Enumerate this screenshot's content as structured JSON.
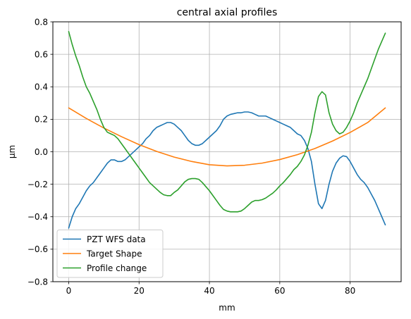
{
  "chart_data": {
    "type": "line",
    "title": "central axial profiles",
    "xlabel": "mm",
    "ylabel": "μm",
    "xlim": [
      -4.5,
      94.5
    ],
    "ylim": [
      -0.8,
      0.8
    ],
    "xticks": [
      0,
      20,
      40,
      60,
      80
    ],
    "yticks": [
      -0.8,
      -0.6,
      -0.4,
      -0.2,
      0.0,
      0.2,
      0.4,
      0.6,
      0.8
    ],
    "xtick_labels": [
      "0",
      "20",
      "40",
      "60",
      "80"
    ],
    "ytick_labels": [
      "−0.8",
      "−0.6",
      "−0.4",
      "−0.2",
      "0.0",
      "0.2",
      "0.4",
      "0.6",
      "0.8"
    ],
    "grid": true,
    "legend_position": "lower left",
    "series": [
      {
        "name": "PZT WFS data",
        "color": "#1f77b4",
        "x": [
          0,
          1,
          2,
          3,
          4,
          5,
          6,
          7,
          8,
          9,
          10,
          11,
          12,
          13,
          14,
          15,
          16,
          17,
          18,
          19,
          20,
          21,
          22,
          23,
          24,
          25,
          26,
          27,
          28,
          29,
          30,
          31,
          32,
          33,
          34,
          35,
          36,
          37,
          38,
          39,
          40,
          41,
          42,
          43,
          44,
          45,
          46,
          47,
          48,
          49,
          50,
          51,
          52,
          53,
          54,
          55,
          56,
          57,
          58,
          59,
          60,
          61,
          62,
          63,
          64,
          65,
          66,
          67,
          68,
          69,
          70,
          71,
          72,
          73,
          74,
          75,
          76,
          77,
          78,
          79,
          80,
          81,
          82,
          83,
          84,
          85,
          86,
          87,
          88,
          89,
          90
        ],
        "y": [
          -0.47,
          -0.4,
          -0.35,
          -0.32,
          -0.28,
          -0.24,
          -0.21,
          -0.19,
          -0.16,
          -0.13,
          -0.1,
          -0.07,
          -0.05,
          -0.05,
          -0.06,
          -0.06,
          -0.05,
          -0.03,
          -0.01,
          0.01,
          0.03,
          0.05,
          0.08,
          0.1,
          0.13,
          0.15,
          0.16,
          0.17,
          0.18,
          0.18,
          0.17,
          0.15,
          0.13,
          0.1,
          0.07,
          0.05,
          0.04,
          0.04,
          0.05,
          0.07,
          0.09,
          0.11,
          0.13,
          0.16,
          0.2,
          0.22,
          0.23,
          0.235,
          0.24,
          0.24,
          0.245,
          0.245,
          0.24,
          0.23,
          0.22,
          0.22,
          0.22,
          0.21,
          0.2,
          0.19,
          0.18,
          0.17,
          0.16,
          0.15,
          0.13,
          0.11,
          0.1,
          0.07,
          0.02,
          -0.06,
          -0.2,
          -0.32,
          -0.35,
          -0.3,
          -0.2,
          -0.12,
          -0.07,
          -0.04,
          -0.025,
          -0.03,
          -0.06,
          -0.1,
          -0.14,
          -0.17,
          -0.19,
          -0.22,
          -0.26,
          -0.3,
          -0.35,
          -0.4,
          -0.45
        ]
      },
      {
        "name": "Target Shape",
        "color": "#ff7f0e",
        "x": [
          0,
          5,
          10,
          15,
          20,
          25,
          30,
          35,
          40,
          45,
          50,
          55,
          60,
          65,
          70,
          75,
          80,
          85,
          90
        ],
        "y": [
          0.27,
          0.205,
          0.146,
          0.093,
          0.044,
          0.002,
          -0.033,
          -0.06,
          -0.08,
          -0.087,
          -0.083,
          -0.07,
          -0.048,
          -0.018,
          0.02,
          0.066,
          0.119,
          0.18,
          0.27
        ]
      },
      {
        "name": "Profile change",
        "color": "#2ca02c",
        "x": [
          0,
          1,
          2,
          3,
          4,
          5,
          6,
          7,
          8,
          9,
          10,
          11,
          12,
          13,
          14,
          15,
          16,
          17,
          18,
          19,
          20,
          21,
          22,
          23,
          24,
          25,
          26,
          27,
          28,
          29,
          30,
          31,
          32,
          33,
          34,
          35,
          36,
          37,
          38,
          39,
          40,
          41,
          42,
          43,
          44,
          45,
          46,
          47,
          48,
          49,
          50,
          51,
          52,
          53,
          54,
          55,
          56,
          57,
          58,
          59,
          60,
          61,
          62,
          63,
          64,
          65,
          66,
          67,
          68,
          69,
          70,
          71,
          72,
          73,
          74,
          75,
          76,
          77,
          78,
          79,
          80,
          81,
          82,
          83,
          84,
          85,
          86,
          87,
          88,
          89,
          90
        ],
        "y": [
          0.74,
          0.66,
          0.59,
          0.53,
          0.46,
          0.4,
          0.36,
          0.31,
          0.26,
          0.2,
          0.15,
          0.12,
          0.11,
          0.1,
          0.08,
          0.05,
          0.02,
          -0.01,
          -0.04,
          -0.07,
          -0.1,
          -0.13,
          -0.16,
          -0.19,
          -0.21,
          -0.23,
          -0.25,
          -0.265,
          -0.27,
          -0.27,
          -0.25,
          -0.235,
          -0.21,
          -0.185,
          -0.17,
          -0.165,
          -0.165,
          -0.17,
          -0.19,
          -0.215,
          -0.24,
          -0.27,
          -0.3,
          -0.33,
          -0.355,
          -0.365,
          -0.37,
          -0.37,
          -0.37,
          -0.365,
          -0.35,
          -0.33,
          -0.31,
          -0.3,
          -0.3,
          -0.295,
          -0.285,
          -0.27,
          -0.255,
          -0.235,
          -0.21,
          -0.19,
          -0.165,
          -0.14,
          -0.11,
          -0.09,
          -0.06,
          -0.02,
          0.04,
          0.12,
          0.24,
          0.34,
          0.37,
          0.35,
          0.24,
          0.17,
          0.13,
          0.11,
          0.12,
          0.15,
          0.19,
          0.24,
          0.3,
          0.35,
          0.4,
          0.45,
          0.51,
          0.57,
          0.63,
          0.68,
          0.73
        ]
      }
    ]
  }
}
